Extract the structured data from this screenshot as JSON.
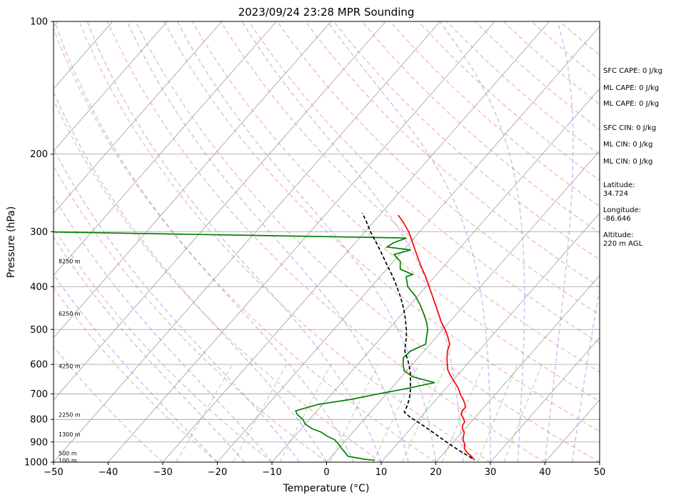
{
  "chart_data": {
    "type": "line",
    "title": "2023/09/24 23:28 MPR Sounding",
    "xlabel": "Temperature (°C)",
    "ylabel": "Pressure (hPa)",
    "xlim": [
      -50,
      50
    ],
    "ylim": [
      1000,
      100
    ],
    "y_scale": "log",
    "skew": "skew-T",
    "grid": true,
    "x_ticks": [
      "−50",
      "−40",
      "−30",
      "−20",
      "−10",
      "0",
      "10",
      "20",
      "30",
      "40",
      "50"
    ],
    "y_ticks": [
      "100",
      "200",
      "300",
      "400",
      "500",
      "600",
      "700",
      "800",
      "900",
      "1000"
    ],
    "height_labels": [
      {
        "text": "100 m",
        "p": 990
      },
      {
        "text": "500 m",
        "p": 955
      },
      {
        "text": "1300 m",
        "p": 865
      },
      {
        "text": "2250 m",
        "p": 780
      },
      {
        "text": "4250 m",
        "p": 605
      },
      {
        "text": "6250 m",
        "p": 460
      },
      {
        "text": "8250 m",
        "p": 350
      }
    ],
    "series": [
      {
        "key": "temperature",
        "color": "#ff0000",
        "p": [
          990,
          985,
          970,
          950,
          930,
          910,
          890,
          870,
          855,
          840,
          825,
          810,
          795,
          780,
          765,
          750,
          735,
          720,
          705,
          690,
          675,
          660,
          645,
          630,
          615,
          600,
          580,
          560,
          540,
          520,
          500,
          480,
          460,
          440,
          420,
          400,
          380,
          360,
          340,
          320,
          300,
          285,
          275
        ],
        "t": [
          26.8,
          26.5,
          25.6,
          24.1,
          23.0,
          22.4,
          21.4,
          20.8,
          20.4,
          19.5,
          19.0,
          18.8,
          18.0,
          17.0,
          16.6,
          16.6,
          15.8,
          14.9,
          13.8,
          12.9,
          11.9,
          10.7,
          9.5,
          8.3,
          7.2,
          6.4,
          5.3,
          4.3,
          3.6,
          2.1,
          0.4,
          -1.6,
          -3.4,
          -5.3,
          -7.3,
          -9.4,
          -11.6,
          -14.1,
          -16.6,
          -19.2,
          -22.0,
          -24.6,
          -26.6
        ]
      },
      {
        "key": "dewpoint",
        "color": "#008000",
        "p": [
          990,
          985,
          970,
          950,
          930,
          910,
          890,
          870,
          855,
          840,
          820,
          800,
          780,
          765,
          740,
          720,
          700,
          680,
          660,
          640,
          620,
          600,
          580,
          560,
          540,
          520,
          500,
          480,
          460,
          440,
          420,
          400,
          380,
          375,
          365,
          350,
          338,
          330,
          325,
          318,
          310,
          300
        ],
        "t": [
          8.5,
          6.5,
          3.0,
          1.8,
          0.5,
          -0.7,
          -2.1,
          -4.4,
          -5.8,
          -8.0,
          -10.0,
          -11.2,
          -13.0,
          -13.9,
          -10.9,
          -5.5,
          -1.5,
          3.0,
          7.0,
          2.0,
          -0.5,
          -1.7,
          -2.7,
          -2.5,
          -0.8,
          -1.8,
          -2.8,
          -4.3,
          -6.1,
          -8.1,
          -10.4,
          -13.3,
          -15.2,
          -14.4,
          -17.5,
          -18.8,
          -21.0,
          -18.7,
          -23.5,
          -23.0,
          -21.4,
          -90
        ]
      },
      {
        "key": "parcel",
        "color": "#000000",
        "dashed": true,
        "p": [
          980,
          940,
          900,
          860,
          820,
          790,
          770,
          740,
          710,
          680,
          650,
          620,
          590,
          560,
          540,
          520,
          500,
          480,
          460,
          440,
          420,
          400,
          380,
          360,
          340,
          320,
          300,
          285,
          272
        ],
        "t": [
          26.0,
          22.3,
          18.7,
          15.1,
          11.2,
          8.0,
          6.2,
          5.6,
          4.7,
          3.5,
          2.1,
          0.6,
          -1.3,
          -3.5,
          -4.5,
          -5.5,
          -6.7,
          -8.1,
          -9.6,
          -11.3,
          -13.2,
          -15.3,
          -17.6,
          -20.2,
          -22.9,
          -25.8,
          -29.0,
          -31.3,
          -33.5
        ]
      }
    ]
  },
  "indices": [
    "SFC CAPE: 0 J/kg",
    "ML CAPE: 0 J/kg",
    "ML CAPE: 0 J/kg",
    "SFC CIN: 0 J/kg",
    "ML CIN: 0 J/kg",
    "ML CIN: 0 J/kg"
  ],
  "location": {
    "latitude_label": "Latitude:",
    "latitude": "34.724",
    "longitude_label": "Longitude:",
    "longitude": "-86.646",
    "altitude_label": "Altitude:",
    "altitude": "220 m AGL"
  },
  "colors": {
    "temperature": "#ff0000",
    "dewpoint": "#008000",
    "parcel": "#000000",
    "dry_adiabat": "#f08080",
    "moist_adiabat": "#7b68ee",
    "mixing_ratio": "#4caf50",
    "isotherm": "#9e9e9e"
  }
}
